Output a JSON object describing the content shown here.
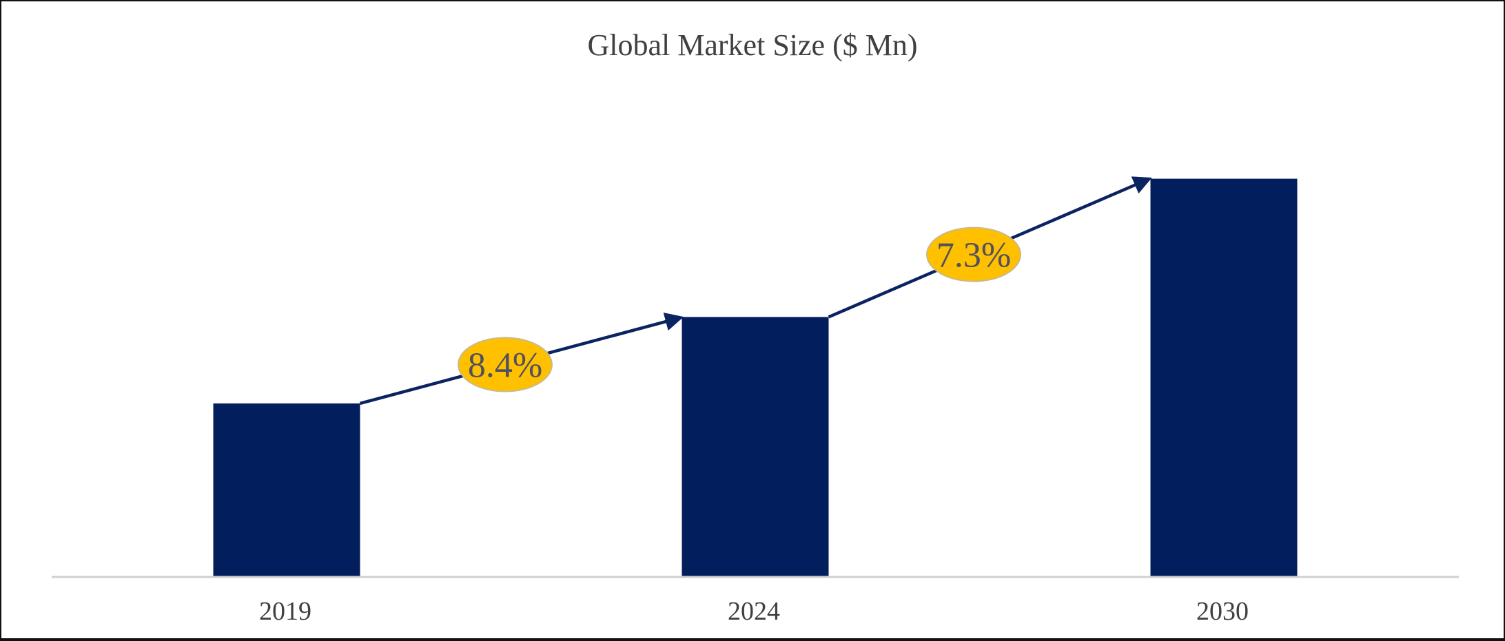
{
  "chart_data": {
    "type": "bar",
    "title": "Global Market Size ($ Mn)",
    "xlabel": "",
    "ylabel": "",
    "categories": [
      "2019",
      "2024",
      "2030"
    ],
    "values": [
      100,
      150,
      230
    ],
    "values_note_unlabeled": true,
    "ylim": [
      0,
      286
    ],
    "grid": false,
    "bar_color": "#031E5C",
    "annotations": [
      {
        "label": "8.4%",
        "from": "2019",
        "to": "2024",
        "color": "#FFC000"
      },
      {
        "label": "7.3%",
        "from": "2024",
        "to": "2030",
        "color": "#FFC000"
      }
    ]
  }
}
